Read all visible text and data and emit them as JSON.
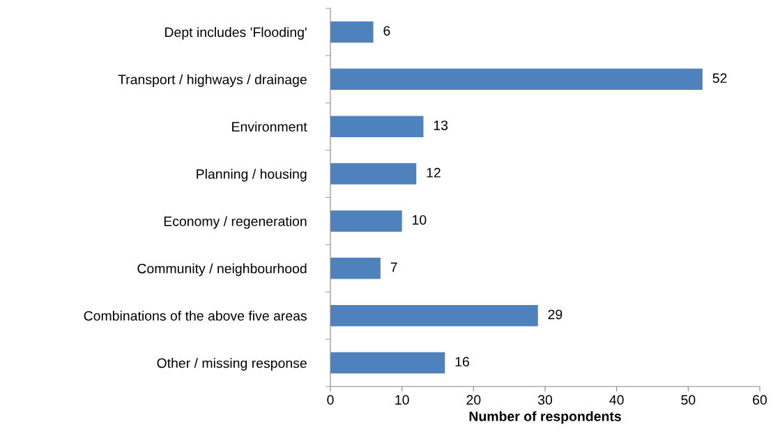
{
  "chart_data": {
    "type": "bar",
    "orientation": "horizontal",
    "xlabel": "Number of respondents",
    "categories": [
      "Dept includes 'Flooding'",
      "Transport / highways / drainage",
      "Environment",
      "Planning / housing",
      "Economy / regeneration",
      "Community / neighbourhood",
      "Combinations of the above five areas",
      "Other / missing response"
    ],
    "values": [
      6,
      52,
      13,
      12,
      10,
      7,
      29,
      16
    ],
    "color": "#4f81bd",
    "xlim": [
      0,
      60
    ],
    "xticks": [
      0,
      10,
      20,
      30,
      40,
      50,
      60
    ],
    "grid": false,
    "data_labels": true
  }
}
